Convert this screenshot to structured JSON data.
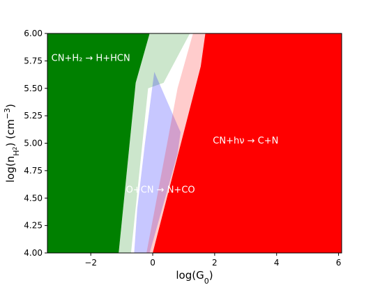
{
  "chart_data": {
    "type": "area",
    "xlabel": "log(G",
    "xlabel_sub": "0",
    "xlabel_end": ")",
    "ylabel": "log(n",
    "ylabel_sub": "H",
    "ylabel_subsub": "2",
    "ylabel_end": ") (cm",
    "ylabel_sup": "−3",
    "ylabel_close": ")",
    "xlim": [
      -3.4,
      6.1
    ],
    "ylim": [
      4.0,
      6.0
    ],
    "xticks": [
      -2,
      0,
      2,
      4,
      6
    ],
    "xtick_labels": [
      "−2",
      "0",
      "2",
      "4",
      "6"
    ],
    "yticks": [
      4.0,
      4.25,
      4.5,
      4.75,
      5.0,
      5.25,
      5.5,
      5.75,
      6.0
    ],
    "ytick_labels": [
      "4.00",
      "4.25",
      "4.50",
      "4.75",
      "5.00",
      "5.25",
      "5.50",
      "5.75",
      "6.00"
    ],
    "regions": [
      {
        "label": "CN+H₂ → H+HCN",
        "color": "#008000",
        "opacity": 1.0,
        "polygon": [
          [
            -3.4,
            4.0
          ],
          [
            -1.1,
            4.0
          ],
          [
            -0.55,
            5.55
          ],
          [
            -0.1,
            6.0
          ],
          [
            -3.4,
            6.0
          ]
        ],
        "label_at": [
          -2.0,
          5.78
        ]
      },
      {
        "label": "",
        "color": "#008000",
        "opacity": 0.2,
        "polygon": [
          [
            -1.1,
            4.0
          ],
          [
            -0.7,
            4.0
          ],
          [
            -0.15,
            5.5
          ],
          [
            0.35,
            5.55
          ],
          [
            1.2,
            6.0
          ],
          [
            -0.1,
            6.0
          ],
          [
            -0.55,
            5.55
          ]
        ],
        "label_at": null
      },
      {
        "label": "O+CN → N+CO",
        "color": "#0000ff",
        "opacity": 0.22,
        "polygon": [
          [
            -0.6,
            4.0
          ],
          [
            -0.1,
            4.0
          ],
          [
            0.8,
            4.9
          ],
          [
            0.9,
            5.1
          ],
          [
            0.05,
            5.65
          ],
          [
            -0.25,
            5.0
          ],
          [
            -0.5,
            4.4
          ]
        ],
        "label_at": [
          0.25,
          4.58
        ]
      },
      {
        "label": "",
        "color": "#ff0000",
        "opacity": 0.2,
        "polygon": [
          [
            -0.2,
            4.0
          ],
          [
            0.0,
            4.0
          ],
          [
            1.55,
            5.7
          ],
          [
            1.7,
            6.0
          ],
          [
            1.3,
            6.0
          ],
          [
            0.8,
            5.5
          ],
          [
            0.2,
            4.6
          ]
        ],
        "label_at": null
      },
      {
        "label": "CN+hν → C+N",
        "color": "#ff0000",
        "opacity": 1.0,
        "polygon": [
          [
            0.0,
            4.0
          ],
          [
            6.1,
            4.0
          ],
          [
            6.1,
            6.0
          ],
          [
            1.7,
            6.0
          ],
          [
            1.55,
            5.7
          ]
        ],
        "label_at": [
          3.0,
          5.03
        ]
      }
    ],
    "grid": false,
    "legend": "none"
  }
}
